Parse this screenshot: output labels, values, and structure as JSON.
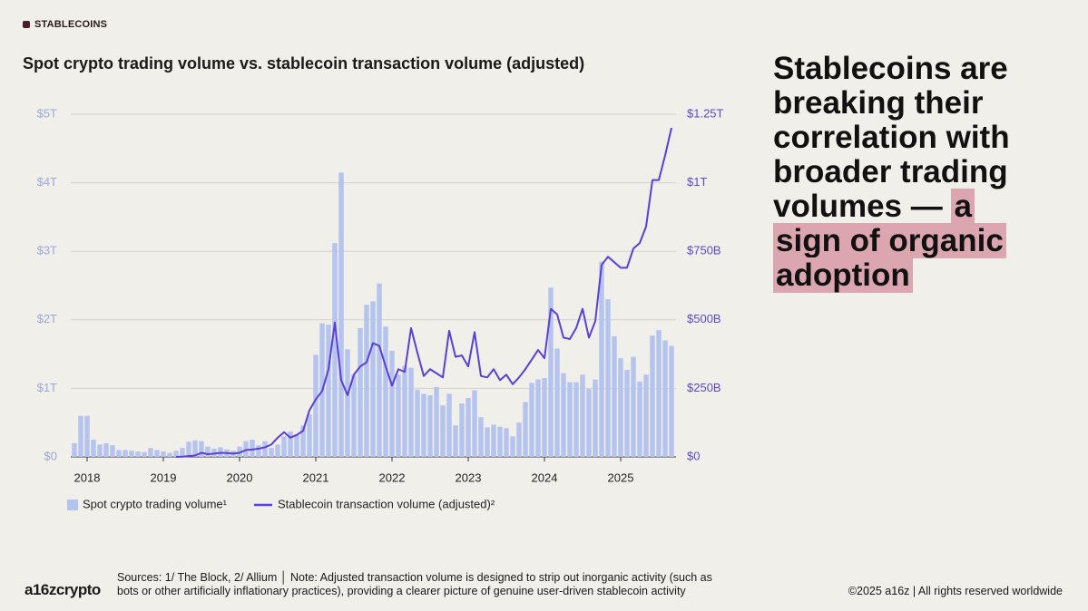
{
  "section_label": "STABLECOINS",
  "headline": {
    "text": "Stablecoins are breaking their correlation with broader trading volumes — ",
    "highlight": "a sign of organic adoption"
  },
  "chart_data": {
    "type": "bar-line",
    "title": "Spot crypto trading volume vs. stablecoin transaction volume (adjusted)",
    "categories": [
      null,
      null,
      "2018",
      null,
      null,
      null,
      null,
      null,
      null,
      null,
      null,
      null,
      null,
      null,
      "2019",
      null,
      null,
      null,
      null,
      null,
      null,
      null,
      null,
      null,
      null,
      null,
      "2020",
      null,
      null,
      null,
      null,
      null,
      null,
      null,
      null,
      null,
      null,
      null,
      "2021",
      null,
      null,
      null,
      null,
      null,
      null,
      null,
      null,
      null,
      null,
      null,
      "2022",
      null,
      null,
      null,
      null,
      null,
      null,
      null,
      null,
      null,
      null,
      null,
      "2023",
      null,
      null,
      null,
      null,
      null,
      null,
      null,
      null,
      null,
      null,
      null,
      "2024",
      null,
      null,
      null,
      null,
      null,
      null,
      null,
      null,
      null,
      null,
      null,
      "2025",
      null,
      null,
      null,
      null,
      null,
      null,
      null,
      null
    ],
    "series": [
      {
        "name": "Spot crypto trading volume¹",
        "type": "bar",
        "color": "#b4c4ee",
        "values": [
          0.2,
          0.6,
          0.6,
          0.25,
          0.18,
          0.2,
          0.17,
          0.1,
          0.1,
          0.09,
          0.08,
          0.07,
          0.13,
          0.1,
          0.08,
          0.06,
          0.09,
          0.13,
          0.22,
          0.24,
          0.23,
          0.15,
          0.12,
          0.14,
          0.11,
          0.09,
          0.15,
          0.23,
          0.25,
          0.17,
          0.23,
          0.13,
          0.18,
          0.3,
          0.37,
          0.32,
          0.46,
          0.62,
          1.49,
          1.95,
          1.93,
          3.12,
          4.15,
          1.57,
          1.2,
          1.88,
          2.22,
          2.27,
          2.53,
          1.9,
          1.55,
          1.2,
          1.33,
          1.3,
          0.98,
          0.92,
          0.9,
          1.02,
          0.75,
          0.92,
          0.46,
          0.78,
          0.86,
          0.97,
          0.58,
          0.43,
          0.47,
          0.44,
          0.42,
          0.3,
          0.5,
          0.8,
          1.08,
          1.13,
          1.15,
          2.47,
          1.58,
          1.22,
          1.09,
          1.09,
          1.2,
          0.99,
          1.13,
          2.85,
          2.3,
          1.76,
          1.44,
          1.27,
          1.46,
          1.1,
          1.2,
          1.77,
          1.85,
          1.7,
          1.62
        ]
      },
      {
        "name": "Stablecoin transaction volume (adjusted)²",
        "type": "line",
        "axis": "y2",
        "color": "#5b3fd6",
        "values": [
          null,
          null,
          null,
          null,
          null,
          null,
          null,
          null,
          null,
          null,
          null,
          null,
          null,
          null,
          null,
          null,
          0,
          1,
          3,
          5,
          15,
          10,
          12,
          15,
          14,
          12,
          15,
          25,
          27,
          30,
          35,
          45,
          70,
          90,
          70,
          80,
          95,
          170,
          210,
          240,
          320,
          490,
          280,
          225,
          300,
          330,
          345,
          415,
          405,
          330,
          260,
          320,
          310,
          470,
          380,
          295,
          320,
          305,
          290,
          460,
          365,
          370,
          330,
          455,
          295,
          290,
          320,
          280,
          300,
          265,
          290,
          320,
          355,
          390,
          360,
          540,
          520,
          435,
          430,
          470,
          540,
          435,
          495,
          700,
          730,
          710,
          690,
          690,
          760,
          780,
          840,
          1010,
          1010,
          1100,
          1200
        ]
      }
    ],
    "ylim": [
      0,
      5
    ],
    "yticks": [
      {
        "value": 0,
        "label": "$0"
      },
      {
        "value": 1,
        "label": "$1T"
      },
      {
        "value": 2,
        "label": "$2T"
      },
      {
        "value": 3,
        "label": "$3T"
      },
      {
        "value": 4,
        "label": "$4T"
      },
      {
        "value": 5,
        "label": "$5T"
      }
    ],
    "y2lim": [
      0,
      1250
    ],
    "y2ticks": [
      {
        "value": 0,
        "label": "$0"
      },
      {
        "value": 250,
        "label": "$250B"
      },
      {
        "value": 500,
        "label": "$500B"
      },
      {
        "value": 750,
        "label": "$750B"
      },
      {
        "value": 1000,
        "label": "$1T"
      },
      {
        "value": 1250,
        "label": "$1.25T"
      }
    ],
    "grid": true,
    "legend": "bottom-left"
  },
  "footer": {
    "logo": "a16zcrypto",
    "sources": "Sources: 1/ The Block, 2/ Allium  │  Note: Adjusted transaction volume is designed to strip out inorganic activity (such as bots or other artificially inflationary practices), providing a clearer picture of genuine user-driven stablecoin activity",
    "copyright": "©2025 a16z | All rights reserved worldwide"
  }
}
